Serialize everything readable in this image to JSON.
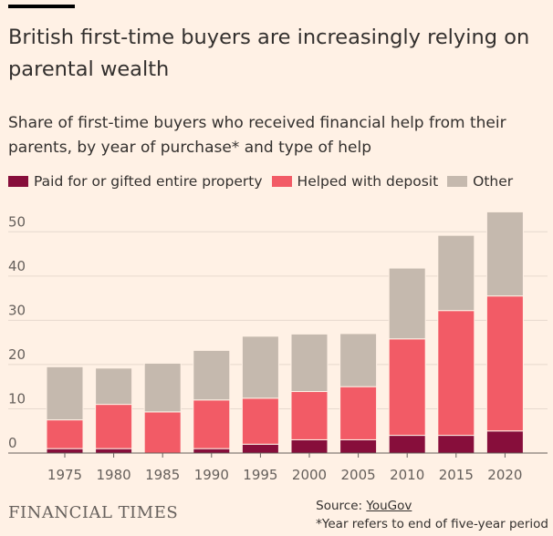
{
  "header": {
    "title": "British first-time buyers are increasingly relying on parental wealth",
    "subtitle": "Share of first-time buyers who received financial help from their parents, by year of purchase* and type of help"
  },
  "legend": [
    {
      "label": "Paid for or gifted entire property",
      "color": "#870E3B"
    },
    {
      "label": "Helped with deposit",
      "color": "#F25B66"
    },
    {
      "label": "Other",
      "color": "#C5B9AE"
    }
  ],
  "chart_data": {
    "type": "bar",
    "stacked": true,
    "categories": [
      "1975",
      "1980",
      "1985",
      "1990",
      "1995",
      "2000",
      "2005",
      "2010",
      "2015",
      "2020"
    ],
    "series": [
      {
        "name": "Paid for or gifted entire property",
        "color": "#870E3B",
        "values": [
          1,
          1,
          0,
          1,
          2,
          3,
          3,
          4,
          4,
          5
        ]
      },
      {
        "name": "Helped with deposit",
        "color": "#F25B66",
        "values": [
          6.5,
          10,
          9.3,
          11,
          10.4,
          10.9,
          12,
          21.8,
          28.2,
          30.5
        ]
      },
      {
        "name": "Other",
        "color": "#C5B9AE",
        "values": [
          12,
          8.2,
          11,
          11.2,
          14,
          13,
          12,
          16,
          17,
          19
        ]
      }
    ],
    "ylim": [
      0,
      55
    ],
    "yticks": [
      0,
      10,
      20,
      30,
      40,
      50
    ],
    "xlabel": "",
    "ylabel": "",
    "grid": true
  },
  "footer": {
    "brand": "FINANCIAL TIMES",
    "source_prefix": "Source: ",
    "source_name": "YouGov",
    "note": "*Year refers to end of five-year period"
  }
}
